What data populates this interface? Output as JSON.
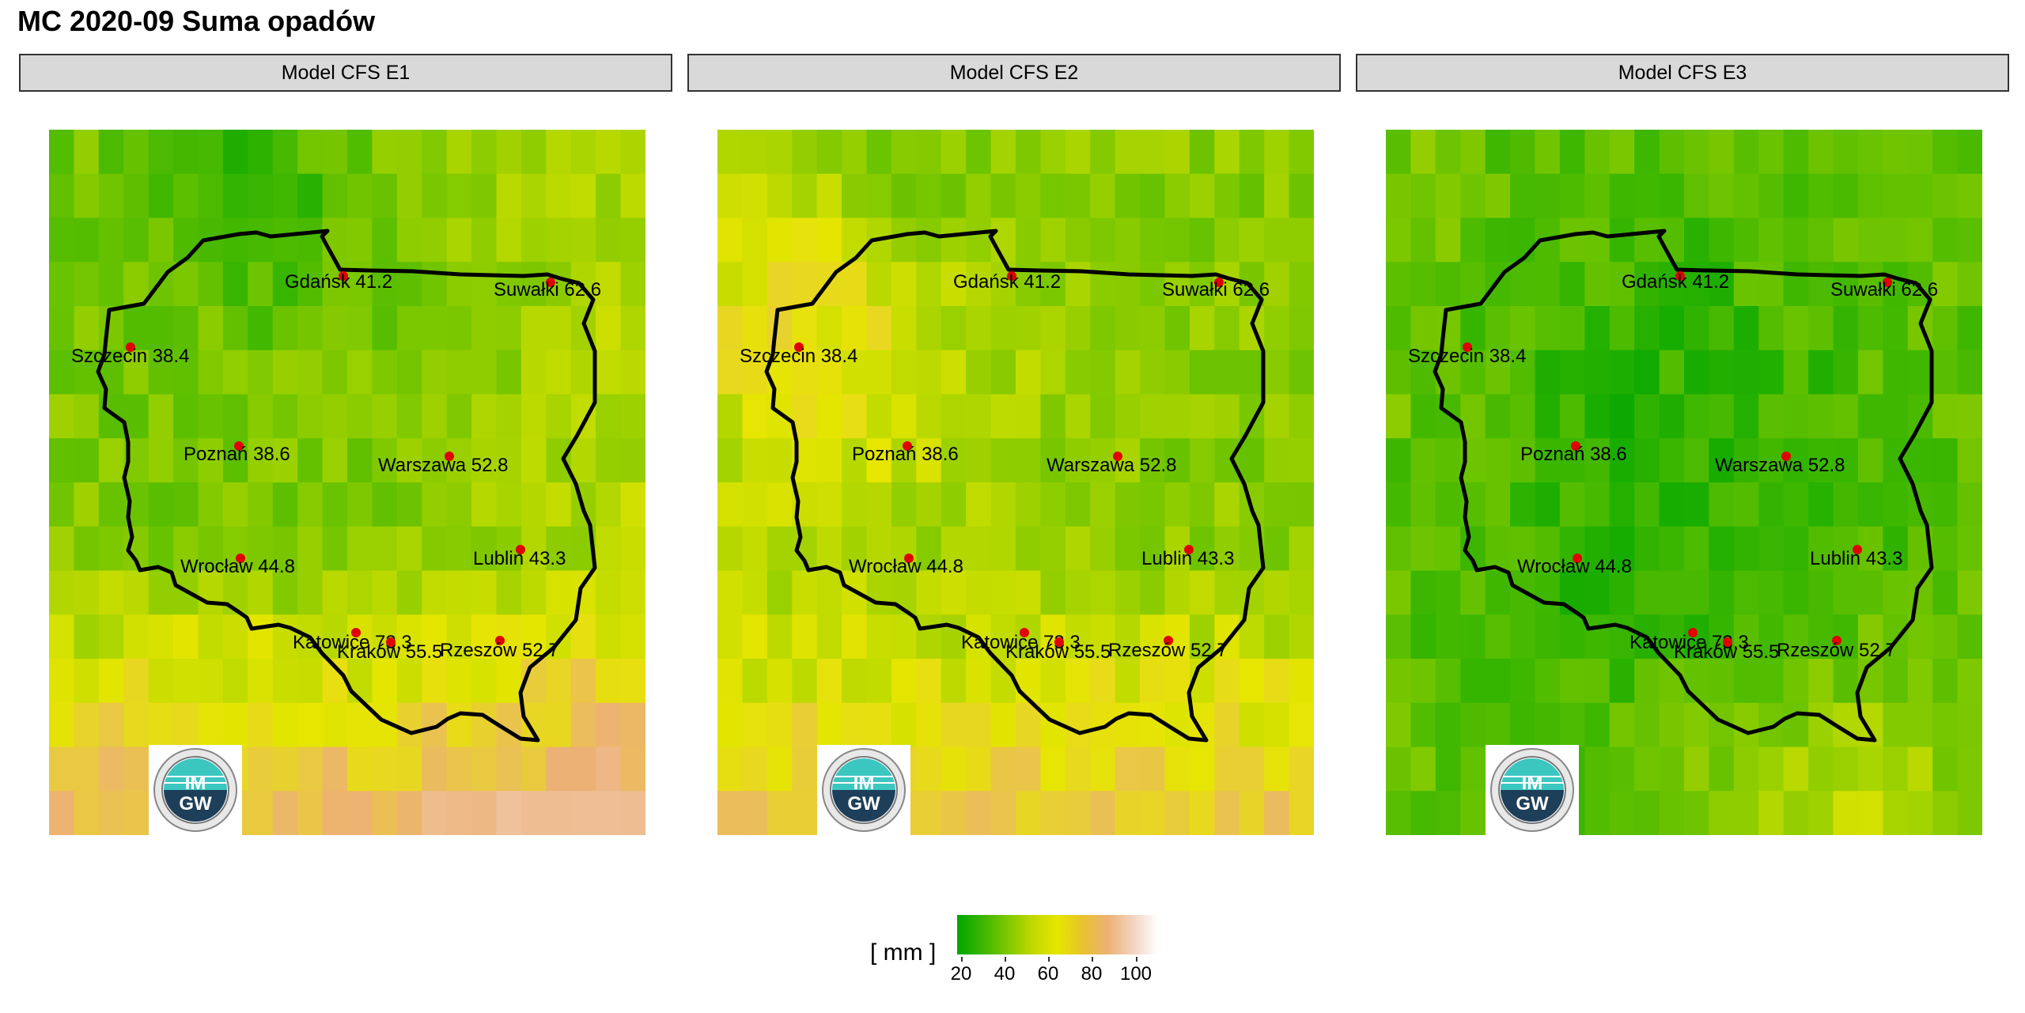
{
  "title": "MC 2020-09 Suma opadów",
  "panels": [
    {
      "label": "Model CFS E1"
    },
    {
      "label": "Model CFS E2"
    },
    {
      "label": "Model CFS E3"
    }
  ],
  "cities": [
    {
      "name": "Gdańsk 41.2"
    },
    {
      "name": "Suwałki 62.6"
    },
    {
      "name": "Szczecin 38.4"
    },
    {
      "name": "Poznań 38.6"
    },
    {
      "name": "Warszawa 52.8"
    },
    {
      "name": "Wrocław 44.8"
    },
    {
      "name": "Lublin 43.3"
    },
    {
      "name": "Katowice 73.3"
    },
    {
      "name": "Kraków 55.5"
    },
    {
      "name": "Rzeszów 52.7"
    }
  ],
  "legend": {
    "title": "[ mm ]",
    "ticks": [
      "20",
      "40",
      "60",
      "80",
      "100"
    ],
    "colors": [
      "#00a600",
      "#7ec800",
      "#e6e600",
      "#ecb176",
      "#ffffff"
    ]
  },
  "logo": {
    "text_top": "IM",
    "text_bottom": "GW"
  },
  "colors": {
    "border": "#000000",
    "city_marker": "#e00000",
    "strip_bg": "#d9d9d9"
  }
}
